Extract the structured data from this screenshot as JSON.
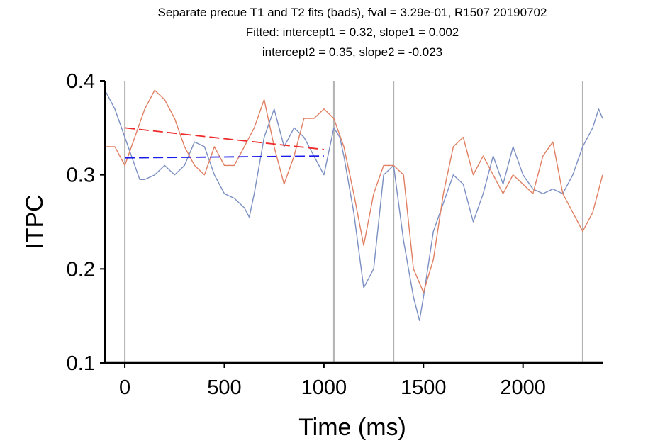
{
  "chart_data": {
    "type": "line",
    "title_lines": [
      "Separate precue T1 and T2 fits (bads), fval = 3.29e-01, R1507 20190702",
      "Fitted: intercept1 = 0.32, slope1 = 0.002",
      "intercept2 = 0.35, slope2 = -0.023"
    ],
    "xlabel": "Time (ms)",
    "ylabel": "ITPC",
    "xlim": [
      -100,
      2400
    ],
    "ylim": [
      0.1,
      0.4
    ],
    "xticks": [
      0,
      500,
      1000,
      1500,
      2000
    ],
    "yticks": [
      0.1,
      0.2,
      0.3,
      0.4
    ],
    "event_lines_x": [
      0,
      1050,
      1350,
      2300
    ],
    "colors": {
      "blue_series": "#7b8fc2",
      "orange_series": "#e07f62",
      "fit_t1": "#1a1aeb",
      "fit_t2": "#ee2a2a",
      "event_line": "#b3b3b3"
    },
    "series": [
      {
        "x": [
          -100,
          -50,
          0,
          50,
          75,
          100,
          150,
          200,
          250,
          300,
          350,
          400,
          450,
          500,
          550,
          600,
          625,
          650,
          700,
          750,
          800,
          850,
          900,
          950,
          1000,
          1050,
          1080,
          1100,
          1150,
          1200,
          1250,
          1300,
          1350,
          1400,
          1450,
          1480,
          1500,
          1550,
          1600,
          1650,
          1700,
          1750,
          1800,
          1850,
          1900,
          1950,
          2000,
          2050,
          2100,
          2150,
          2200,
          2250,
          2300,
          2350,
          2380,
          2400
        ],
        "y": [
          0.39,
          0.37,
          0.34,
          0.31,
          0.295,
          0.295,
          0.3,
          0.31,
          0.3,
          0.31,
          0.335,
          0.33,
          0.3,
          0.28,
          0.275,
          0.265,
          0.255,
          0.28,
          0.34,
          0.37,
          0.33,
          0.35,
          0.34,
          0.32,
          0.3,
          0.35,
          0.34,
          0.32,
          0.26,
          0.18,
          0.2,
          0.3,
          0.31,
          0.23,
          0.17,
          0.145,
          0.17,
          0.24,
          0.27,
          0.3,
          0.29,
          0.25,
          0.28,
          0.32,
          0.29,
          0.33,
          0.3,
          0.285,
          0.28,
          0.285,
          0.28,
          0.3,
          0.33,
          0.35,
          0.37,
          0.36
        ]
      },
      {
        "x": [
          -100,
          -50,
          0,
          50,
          100,
          150,
          200,
          250,
          300,
          350,
          400,
          450,
          500,
          550,
          600,
          650,
          700,
          750,
          800,
          850,
          900,
          950,
          1000,
          1050,
          1100,
          1150,
          1200,
          1250,
          1300,
          1350,
          1400,
          1450,
          1500,
          1550,
          1600,
          1650,
          1700,
          1750,
          1800,
          1850,
          1900,
          1950,
          2000,
          2050,
          2100,
          2150,
          2200,
          2250,
          2300,
          2350,
          2400
        ],
        "y": [
          0.33,
          0.33,
          0.31,
          0.34,
          0.37,
          0.39,
          0.38,
          0.36,
          0.33,
          0.31,
          0.3,
          0.33,
          0.31,
          0.31,
          0.33,
          0.35,
          0.38,
          0.33,
          0.29,
          0.32,
          0.36,
          0.36,
          0.37,
          0.36,
          0.33,
          0.28,
          0.225,
          0.28,
          0.31,
          0.31,
          0.3,
          0.2,
          0.175,
          0.21,
          0.28,
          0.33,
          0.34,
          0.3,
          0.32,
          0.3,
          0.28,
          0.3,
          0.29,
          0.28,
          0.32,
          0.335,
          0.28,
          0.26,
          0.24,
          0.26,
          0.3
        ]
      }
    ],
    "fits": [
      {
        "x": [
          0,
          1000
        ],
        "y": [
          0.318,
          0.32
        ]
      },
      {
        "x": [
          0,
          1000
        ],
        "y": [
          0.35,
          0.327
        ]
      }
    ]
  }
}
